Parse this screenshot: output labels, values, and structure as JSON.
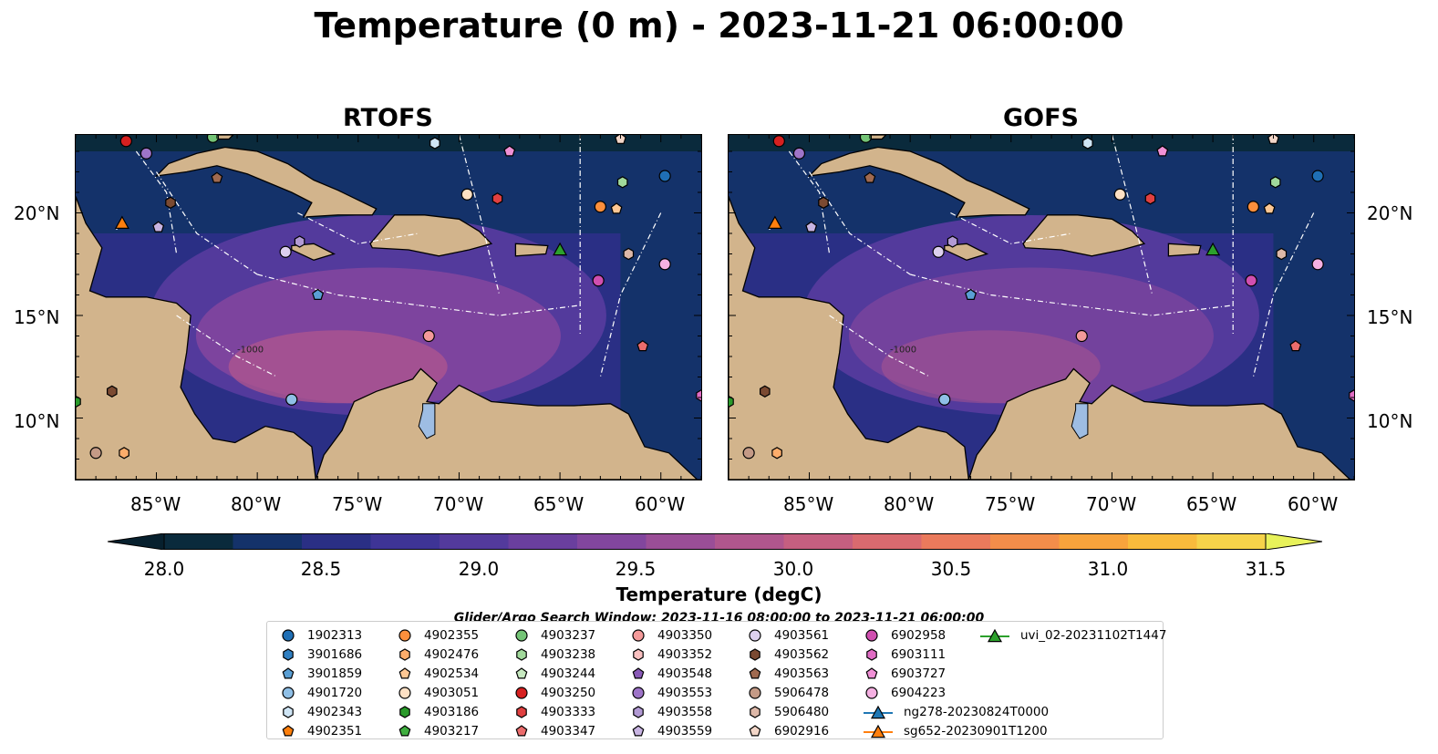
{
  "title": "Temperature (0 m) - 2023-11-21 06:00:00",
  "panels": [
    {
      "label": "RTOFS"
    },
    {
      "label": "GOFS"
    }
  ],
  "axes": {
    "lat_ticks": [
      "20°N",
      "15°N",
      "10°N"
    ],
    "lon_ticks": [
      "85°W",
      "80°W",
      "75°W",
      "70°W",
      "65°W",
      "60°W"
    ],
    "extent": {
      "lon_min": -89,
      "lon_max": -58,
      "lat_min": 7,
      "lat_max": 23.8
    }
  },
  "bathymetry_label": "-1000",
  "colorbar": {
    "title": "Temperature (degC)",
    "ticks": [
      "28.0",
      "28.5",
      "29.0",
      "29.5",
      "30.0",
      "30.5",
      "31.0",
      "31.5"
    ],
    "min": 28.0,
    "max": 31.5,
    "step": 0.25,
    "colors": [
      "#0a2a3c",
      "#14326a",
      "#2a2f85",
      "#3e3496",
      "#533a9c",
      "#6a3f9e",
      "#82469e",
      "#9a4e97",
      "#b0568d",
      "#c55f80",
      "#d96a6f",
      "#ea7a5c",
      "#f38d4a",
      "#f8a33c",
      "#f9bb3c",
      "#f6d34a"
    ],
    "under_color": "#07202e",
    "over_color": "#e8f25a"
  },
  "search_window": "Glider/Argo Search Window: 2023-11-16 08:00:00 to 2023-11-21 06:00:00",
  "colors": {
    "land": "#d2b48c",
    "lake": "#9ebde3",
    "track": "#ffffff"
  },
  "legend": [
    {
      "label": "1902313",
      "marker": "circle",
      "color": "#1f6fb5"
    },
    {
      "label": "3901686",
      "marker": "hexagon",
      "color": "#2f7fc1"
    },
    {
      "label": "3901859",
      "marker": "pentagon",
      "color": "#5a9fd4"
    },
    {
      "label": "4901720",
      "marker": "circle",
      "color": "#8fbfe6"
    },
    {
      "label": "4902343",
      "marker": "hexagon",
      "color": "#cfe5f5"
    },
    {
      "label": "4902351",
      "marker": "pentagon",
      "color": "#fd7f0c"
    },
    {
      "label": "4902355",
      "marker": "circle",
      "color": "#fd8f3c"
    },
    {
      "label": "4902476",
      "marker": "hexagon",
      "color": "#fdad6b"
    },
    {
      "label": "4902534",
      "marker": "pentagon",
      "color": "#fdc794"
    },
    {
      "label": "4903051",
      "marker": "circle",
      "color": "#fde0c4"
    },
    {
      "label": "4903186",
      "marker": "hexagon",
      "color": "#2a9a2a"
    },
    {
      "label": "4903217",
      "marker": "pentagon",
      "color": "#3fae3f"
    },
    {
      "label": "4903237",
      "marker": "circle",
      "color": "#74c476"
    },
    {
      "label": "4903238",
      "marker": "hexagon",
      "color": "#a1d99b"
    },
    {
      "label": "4903244",
      "marker": "pentagon",
      "color": "#c7e9c0"
    },
    {
      "label": "4903250",
      "marker": "circle",
      "color": "#d62020"
    },
    {
      "label": "4903333",
      "marker": "hexagon",
      "color": "#e04040"
    },
    {
      "label": "4903347",
      "marker": "pentagon",
      "color": "#eb6c6c"
    },
    {
      "label": "4903350",
      "marker": "circle",
      "color": "#f49a9a"
    },
    {
      "label": "4903352",
      "marker": "hexagon",
      "color": "#f9c0c0"
    },
    {
      "label": "4903548",
      "marker": "pentagon",
      "color": "#8a5ab8"
    },
    {
      "label": "4903553",
      "marker": "circle",
      "color": "#9e74c8"
    },
    {
      "label": "4903558",
      "marker": "hexagon",
      "color": "#b29ad4"
    },
    {
      "label": "4903559",
      "marker": "pentagon",
      "color": "#c8b4e2"
    },
    {
      "label": "4903561",
      "marker": "circle",
      "color": "#ddd0ee"
    },
    {
      "label": "4903562",
      "marker": "hexagon",
      "color": "#7b4a32"
    },
    {
      "label": "4903563",
      "marker": "pentagon",
      "color": "#a06a50"
    },
    {
      "label": "5906478",
      "marker": "circle",
      "color": "#c49a86"
    },
    {
      "label": "5906480",
      "marker": "hexagon",
      "color": "#ddb8a8"
    },
    {
      "label": "6902916",
      "marker": "pentagon",
      "color": "#f2d6c8"
    },
    {
      "label": "6902958",
      "marker": "circle",
      "color": "#d04fb0"
    },
    {
      "label": "6903111",
      "marker": "hexagon",
      "color": "#e06cc4"
    },
    {
      "label": "6903727",
      "marker": "pentagon",
      "color": "#f090d6"
    },
    {
      "label": "6904223",
      "marker": "circle",
      "color": "#f5b0e2"
    },
    {
      "label": "ng278-20230824T0000",
      "marker": "triangle-line",
      "color": "#1f77b4"
    },
    {
      "label": "sg652-20230901T1200",
      "marker": "triangle-line",
      "color": "#ff7f0e"
    },
    {
      "label": "uvi_02-20231102T1447",
      "marker": "triangle-line",
      "color": "#2ca02c"
    }
  ],
  "floats": [
    {
      "id": "4903250",
      "lon": -86.5,
      "lat": 23.5
    },
    {
      "id": "4903553",
      "lon": -85.5,
      "lat": 22.9
    },
    {
      "id": "4903237",
      "lon": -82.2,
      "lat": 23.7
    },
    {
      "id": "4902343",
      "lon": -71.2,
      "lat": 23.4
    },
    {
      "id": "6903727",
      "lon": -67.5,
      "lat": 23.0
    },
    {
      "id": "6902916",
      "lon": -62.0,
      "lat": 23.6
    },
    {
      "id": "1902313",
      "lon": -59.8,
      "lat": 21.8
    },
    {
      "id": "4903563",
      "lon": -82.0,
      "lat": 21.7
    },
    {
      "id": "4903562",
      "lon": -84.3,
      "lat": 20.5
    },
    {
      "id": "4903051",
      "lon": -69.6,
      "lat": 20.9
    },
    {
      "id": "4903333",
      "lon": -68.1,
      "lat": 20.7
    },
    {
      "id": "4903238",
      "lon": -61.9,
      "lat": 21.5
    },
    {
      "id": "4902355",
      "lon": -63.0,
      "lat": 20.3
    },
    {
      "id": "4902534",
      "lon": -62.2,
      "lat": 20.2
    },
    {
      "id": "4903559",
      "lon": -84.9,
      "lat": 19.3
    },
    {
      "id": "4903561",
      "lon": -78.6,
      "lat": 18.1
    },
    {
      "id": "4903558",
      "lon": -77.9,
      "lat": 18.6
    },
    {
      "id": "5906480",
      "lon": -61.6,
      "lat": 18.0
    },
    {
      "id": "6904223",
      "lon": -59.8,
      "lat": 17.5
    },
    {
      "id": "3901859",
      "lon": -77.0,
      "lat": 16.0
    },
    {
      "id": "4903350",
      "lon": -71.5,
      "lat": 14.0
    },
    {
      "id": "4903347",
      "lon": -60.9,
      "lat": 13.5
    },
    {
      "id": "4901720",
      "lon": -78.3,
      "lat": 10.9
    },
    {
      "id": "5906478",
      "lon": -88.0,
      "lat": 8.3
    },
    {
      "id": "4902476",
      "lon": -86.6,
      "lat": 8.3
    },
    {
      "id": "4903562",
      "lon": -87.2,
      "lat": 11.3
    },
    {
      "id": "4903186",
      "lon": -89.0,
      "lat": 10.8
    },
    {
      "id": "6902958",
      "lon": -63.1,
      "lat": 16.7
    },
    {
      "id": "6903111",
      "lon": -58.0,
      "lat": 11.1
    }
  ],
  "gliders": [
    {
      "id": "sg652-20230901T1200",
      "lon": -86.7,
      "lat": 19.5
    },
    {
      "id": "uvi_02-20231102T1447",
      "lon": -65.0,
      "lat": 18.2
    }
  ]
}
